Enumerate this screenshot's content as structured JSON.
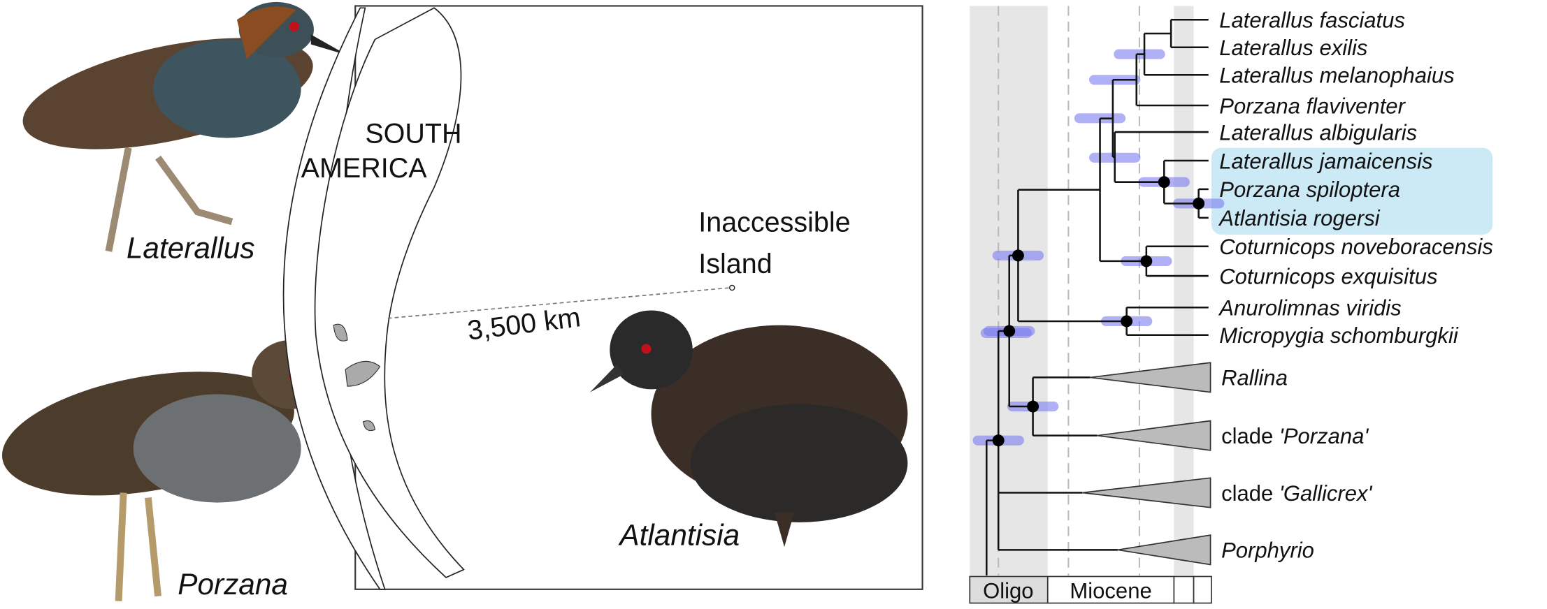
{
  "photos": {
    "laterallus": "Laterallus",
    "porzana": "Porzana",
    "atlantisia": "Atlantisia"
  },
  "map": {
    "region": [
      "SOUTH",
      "AMERICA"
    ],
    "island": [
      "Inaccessible",
      "Island"
    ],
    "distance": "3,500 km"
  },
  "tree": {
    "tips": [
      {
        "name": "Laterallus fasciatus"
      },
      {
        "name": "Laterallus exilis"
      },
      {
        "name": "Laterallus melanophaius"
      },
      {
        "name": "Porzana flaviventer"
      },
      {
        "name": "Laterallus albigularis"
      },
      {
        "name": "Laterallus jamaicensis"
      },
      {
        "name": "Porzana spiloptera"
      },
      {
        "name": "Atlantisia rogersi"
      },
      {
        "name": "Coturnicops noveboracensis"
      },
      {
        "name": "Coturnicops exquisitus"
      },
      {
        "name": "Anurolimnas viridis"
      },
      {
        "name": "Micropygia schomburgkii"
      },
      {
        "name": "Rallina"
      },
      {
        "prefix": "clade",
        "name": "'Porzana'"
      },
      {
        "prefix": "clade",
        "name": "'Gallicrex'"
      },
      {
        "name": "Porphyrio"
      }
    ],
    "time_scale": [
      "Oligo",
      "Miocene"
    ]
  }
}
